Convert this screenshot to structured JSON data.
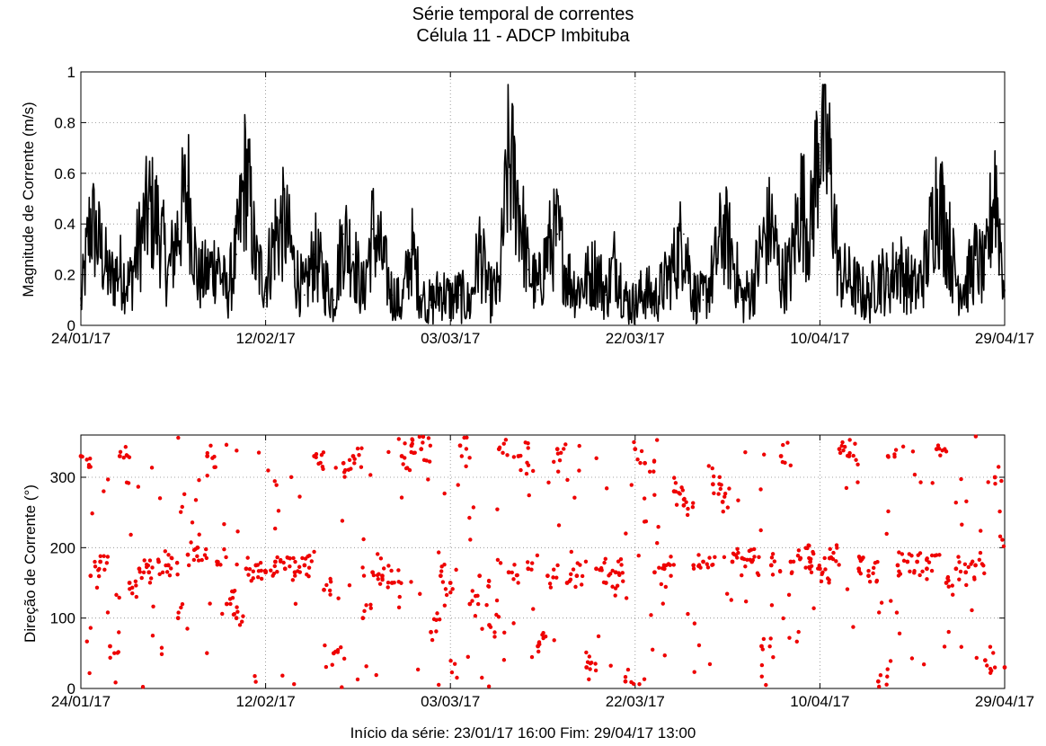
{
  "title_line_1": "Série temporal de correntes",
  "title_line_2": "Célula 11 - ADCP Imbituba",
  "footer_note": "Início da série: 23/01/17 16:00  Fim: 29/04/17 13:00",
  "chart_data": [
    {
      "type": "line",
      "ylabel": "Magnitude de Corrente (m/s)",
      "ylim": [
        0,
        1
      ],
      "yticks": [
        "0",
        "0.2",
        "0.4",
        "0.6",
        "0.8",
        "1"
      ],
      "xlim": [
        "2017-01-24",
        "2017-04-29"
      ],
      "xticks": [
        "24/01/17",
        "12/02/17",
        "03/03/17",
        "22/03/17",
        "10/04/17",
        "29/04/17"
      ],
      "grid": true,
      "color": "#000000",
      "series": [
        {
          "x": [
            "2017-01-24",
            "2017-01-25",
            "2017-01-26",
            "2017-01-27",
            "2017-01-28",
            "2017-01-29",
            "2017-01-30",
            "2017-01-31",
            "2017-02-01",
            "2017-02-02",
            "2017-02-03",
            "2017-02-04",
            "2017-02-05",
            "2017-02-06",
            "2017-02-07",
            "2017-02-08",
            "2017-02-09",
            "2017-02-10",
            "2017-02-11",
            "2017-02-12",
            "2017-02-13",
            "2017-02-14",
            "2017-02-15",
            "2017-02-16",
            "2017-02-17",
            "2017-02-18",
            "2017-02-19",
            "2017-02-20",
            "2017-02-21",
            "2017-02-22",
            "2017-02-23",
            "2017-02-24",
            "2017-02-25",
            "2017-02-26",
            "2017-02-27",
            "2017-02-28",
            "2017-03-01",
            "2017-03-02",
            "2017-03-03",
            "2017-03-04",
            "2017-03-05",
            "2017-03-06",
            "2017-03-07",
            "2017-03-08",
            "2017-03-09",
            "2017-03-10",
            "2017-03-11",
            "2017-03-12",
            "2017-03-13",
            "2017-03-14",
            "2017-03-15",
            "2017-03-16",
            "2017-03-17",
            "2017-03-18",
            "2017-03-19",
            "2017-03-20",
            "2017-03-21",
            "2017-03-22",
            "2017-03-23",
            "2017-03-24",
            "2017-03-25",
            "2017-03-26",
            "2017-03-27",
            "2017-03-28",
            "2017-03-29",
            "2017-03-30",
            "2017-03-31",
            "2017-04-01",
            "2017-04-02",
            "2017-04-03",
            "2017-04-04",
            "2017-04-05",
            "2017-04-06",
            "2017-04-07",
            "2017-04-08",
            "2017-04-09",
            "2017-04-10",
            "2017-04-11",
            "2017-04-12",
            "2017-04-13",
            "2017-04-14",
            "2017-04-15",
            "2017-04-16",
            "2017-04-17",
            "2017-04-18",
            "2017-04-19",
            "2017-04-20",
            "2017-04-21",
            "2017-04-22",
            "2017-04-23",
            "2017-04-24",
            "2017-04-25",
            "2017-04-26",
            "2017-04-27",
            "2017-04-28",
            "2017-04-29"
          ],
          "y": [
            0.08,
            0.42,
            0.3,
            0.18,
            0.22,
            0.16,
            0.32,
            0.46,
            0.4,
            0.2,
            0.38,
            0.55,
            0.18,
            0.2,
            0.26,
            0.12,
            0.28,
            0.62,
            0.24,
            0.18,
            0.36,
            0.4,
            0.22,
            0.12,
            0.28,
            0.18,
            0.1,
            0.36,
            0.28,
            0.12,
            0.38,
            0.26,
            0.12,
            0.08,
            0.3,
            0.12,
            0.08,
            0.14,
            0.1,
            0.12,
            0.08,
            0.3,
            0.12,
            0.14,
            0.66,
            0.5,
            0.22,
            0.14,
            0.3,
            0.36,
            0.2,
            0.14,
            0.18,
            0.22,
            0.12,
            0.26,
            0.1,
            0.08,
            0.14,
            0.1,
            0.16,
            0.24,
            0.36,
            0.12,
            0.1,
            0.2,
            0.38,
            0.28,
            0.1,
            0.14,
            0.3,
            0.4,
            0.18,
            0.22,
            0.5,
            0.36,
            0.8,
            0.62,
            0.2,
            0.18,
            0.14,
            0.1,
            0.2,
            0.16,
            0.24,
            0.18,
            0.14,
            0.26,
            0.52,
            0.38,
            0.18,
            0.16,
            0.26,
            0.2,
            0.58,
            0.14
          ]
        }
      ]
    },
    {
      "type": "scatter",
      "ylabel": "Direção de Corrente (°)",
      "ylim": [
        0,
        360
      ],
      "yticks": [
        "0",
        "100",
        "200",
        "300"
      ],
      "xlim": [
        "2017-01-24",
        "2017-04-29"
      ],
      "xticks": [
        "24/01/17",
        "12/02/17",
        "03/03/17",
        "22/03/17",
        "10/04/17",
        "29/04/17"
      ],
      "grid": true,
      "color": "#ee0000",
      "series": [
        {
          "x": [
            "2017-01-24",
            "2017-01-25",
            "2017-01-26",
            "2017-01-27",
            "2017-01-28",
            "2017-01-29",
            "2017-01-30",
            "2017-01-31",
            "2017-02-01",
            "2017-02-02",
            "2017-02-03",
            "2017-02-04",
            "2017-02-05",
            "2017-02-06",
            "2017-02-07",
            "2017-02-08",
            "2017-02-09",
            "2017-02-10",
            "2017-02-11",
            "2017-02-12",
            "2017-02-13",
            "2017-02-14",
            "2017-02-15",
            "2017-02-16",
            "2017-02-17",
            "2017-02-18",
            "2017-02-19",
            "2017-02-20",
            "2017-02-21",
            "2017-02-22",
            "2017-02-23",
            "2017-02-24",
            "2017-02-25",
            "2017-02-26",
            "2017-02-27",
            "2017-02-28",
            "2017-03-01",
            "2017-03-02",
            "2017-03-03",
            "2017-03-04",
            "2017-03-05",
            "2017-03-06",
            "2017-03-07",
            "2017-03-08",
            "2017-03-09",
            "2017-03-10",
            "2017-03-11",
            "2017-03-12",
            "2017-03-13",
            "2017-03-14",
            "2017-03-15",
            "2017-03-16",
            "2017-03-17",
            "2017-03-18",
            "2017-03-19",
            "2017-03-20",
            "2017-03-21",
            "2017-03-22",
            "2017-03-23",
            "2017-03-24",
            "2017-03-25",
            "2017-03-26",
            "2017-03-27",
            "2017-03-28",
            "2017-03-29",
            "2017-03-30",
            "2017-03-31",
            "2017-04-01",
            "2017-04-02",
            "2017-04-03",
            "2017-04-04",
            "2017-04-05",
            "2017-04-06",
            "2017-04-07",
            "2017-04-08",
            "2017-04-09",
            "2017-04-10",
            "2017-04-11",
            "2017-04-12",
            "2017-04-13",
            "2017-04-14",
            "2017-04-15",
            "2017-04-16",
            "2017-04-17",
            "2017-04-18",
            "2017-04-19",
            "2017-04-20",
            "2017-04-21",
            "2017-04-22",
            "2017-04-23",
            "2017-04-24",
            "2017-04-25",
            "2017-04-26",
            "2017-04-27",
            "2017-04-28",
            "2017-04-29"
          ],
          "y": [
            330,
            160,
            180,
            60,
            330,
            150,
            170,
            165,
            180,
            175,
            100,
            190,
            200,
            330,
            180,
            120,
            100,
            170,
            175,
            165,
            180,
            170,
            165,
            175,
            330,
            140,
            50,
            320,
            330,
            100,
            165,
            160,
            150,
            330,
            345,
            340,
            80,
            160,
            150,
            345,
            120,
            160,
            90,
            340,
            165,
            330,
            170,
            60,
            160,
            340,
            150,
            160,
            30,
            170,
            150,
            165,
            10,
            340,
            320,
            165,
            170,
            280,
            260,
            175,
            180,
            290,
            265,
            180,
            185,
            180,
            60,
            175,
            330,
            180,
            185,
            180,
            170,
            185,
            340,
            330,
            170,
            160,
            10,
            330,
            175,
            180,
            180,
            170,
            340,
            150,
            170,
            165,
            175,
            40,
            300,
            30
          ]
        }
      ]
    }
  ]
}
